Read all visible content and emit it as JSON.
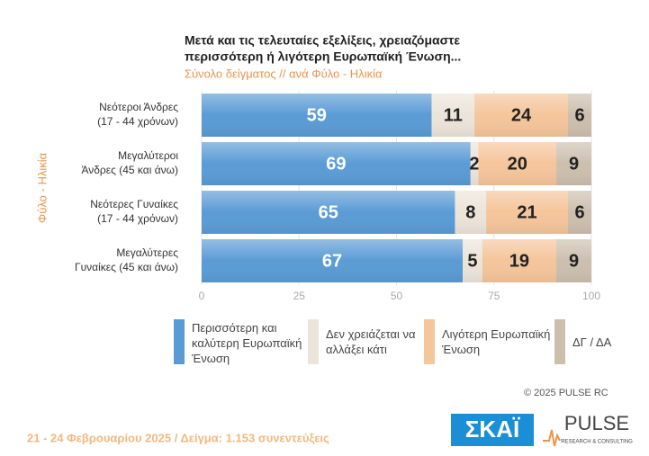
{
  "chart_data": {
    "type": "stacked-bar-horizontal",
    "title": [
      "Μετά και τις τελευταίες εξελίξεις, χρειαζόμαστε",
      "περισσότερη ή λιγότερη Ευρωπαϊκή Ένωση..."
    ],
    "subtitle": "Σύνολο δείγματος // ανά Φύλο - Ηλικία",
    "y_label": "Φύλο - Ηλικία",
    "categories": [
      [
        "Νεότεροι Άνδρες",
        "(17 - 44 χρόνων)"
      ],
      [
        "Μεγαλύτεροι",
        "Άνδρες (45 και άνω)"
      ],
      [
        "Νεότερες Γυναίκες",
        "(17 - 44 χρόνων)"
      ],
      [
        "Μεγαλύτερες",
        "Γυναίκες (45 και άνω)"
      ]
    ],
    "series": [
      {
        "name": "Περισσότερη και καλύτερη Ευρωπαϊκή Ένωση",
        "color": "#5b9bd5",
        "values": [
          59,
          69,
          65,
          67
        ]
      },
      {
        "name": "Δεν χρειάζεται να αλλάξει κάτι",
        "color": "#ece4d9",
        "values": [
          11,
          2,
          8,
          5
        ]
      },
      {
        "name": "Λιγότερη Ευρωπαϊκή Ένωση",
        "color": "#f5c59b",
        "values": [
          24,
          20,
          21,
          19
        ]
      },
      {
        "name": "ΔΓ / ΔΑ",
        "color": "#cdbfae",
        "values": [
          6,
          9,
          6,
          9
        ]
      }
    ],
    "xlim": [
      0,
      100
    ],
    "xticks": [
      0,
      25,
      50,
      75,
      100
    ],
    "grid": true,
    "footer": "21 - 24 Φεβρουαρίου 2025  /  Δείγμα:  1.153 συνεντεύξεις",
    "copyright": "© 2025 PULSE RC",
    "logos": [
      "ΣΚΑΪ",
      "PULSE",
      "RESEARCH & CONSULTING"
    ]
  }
}
